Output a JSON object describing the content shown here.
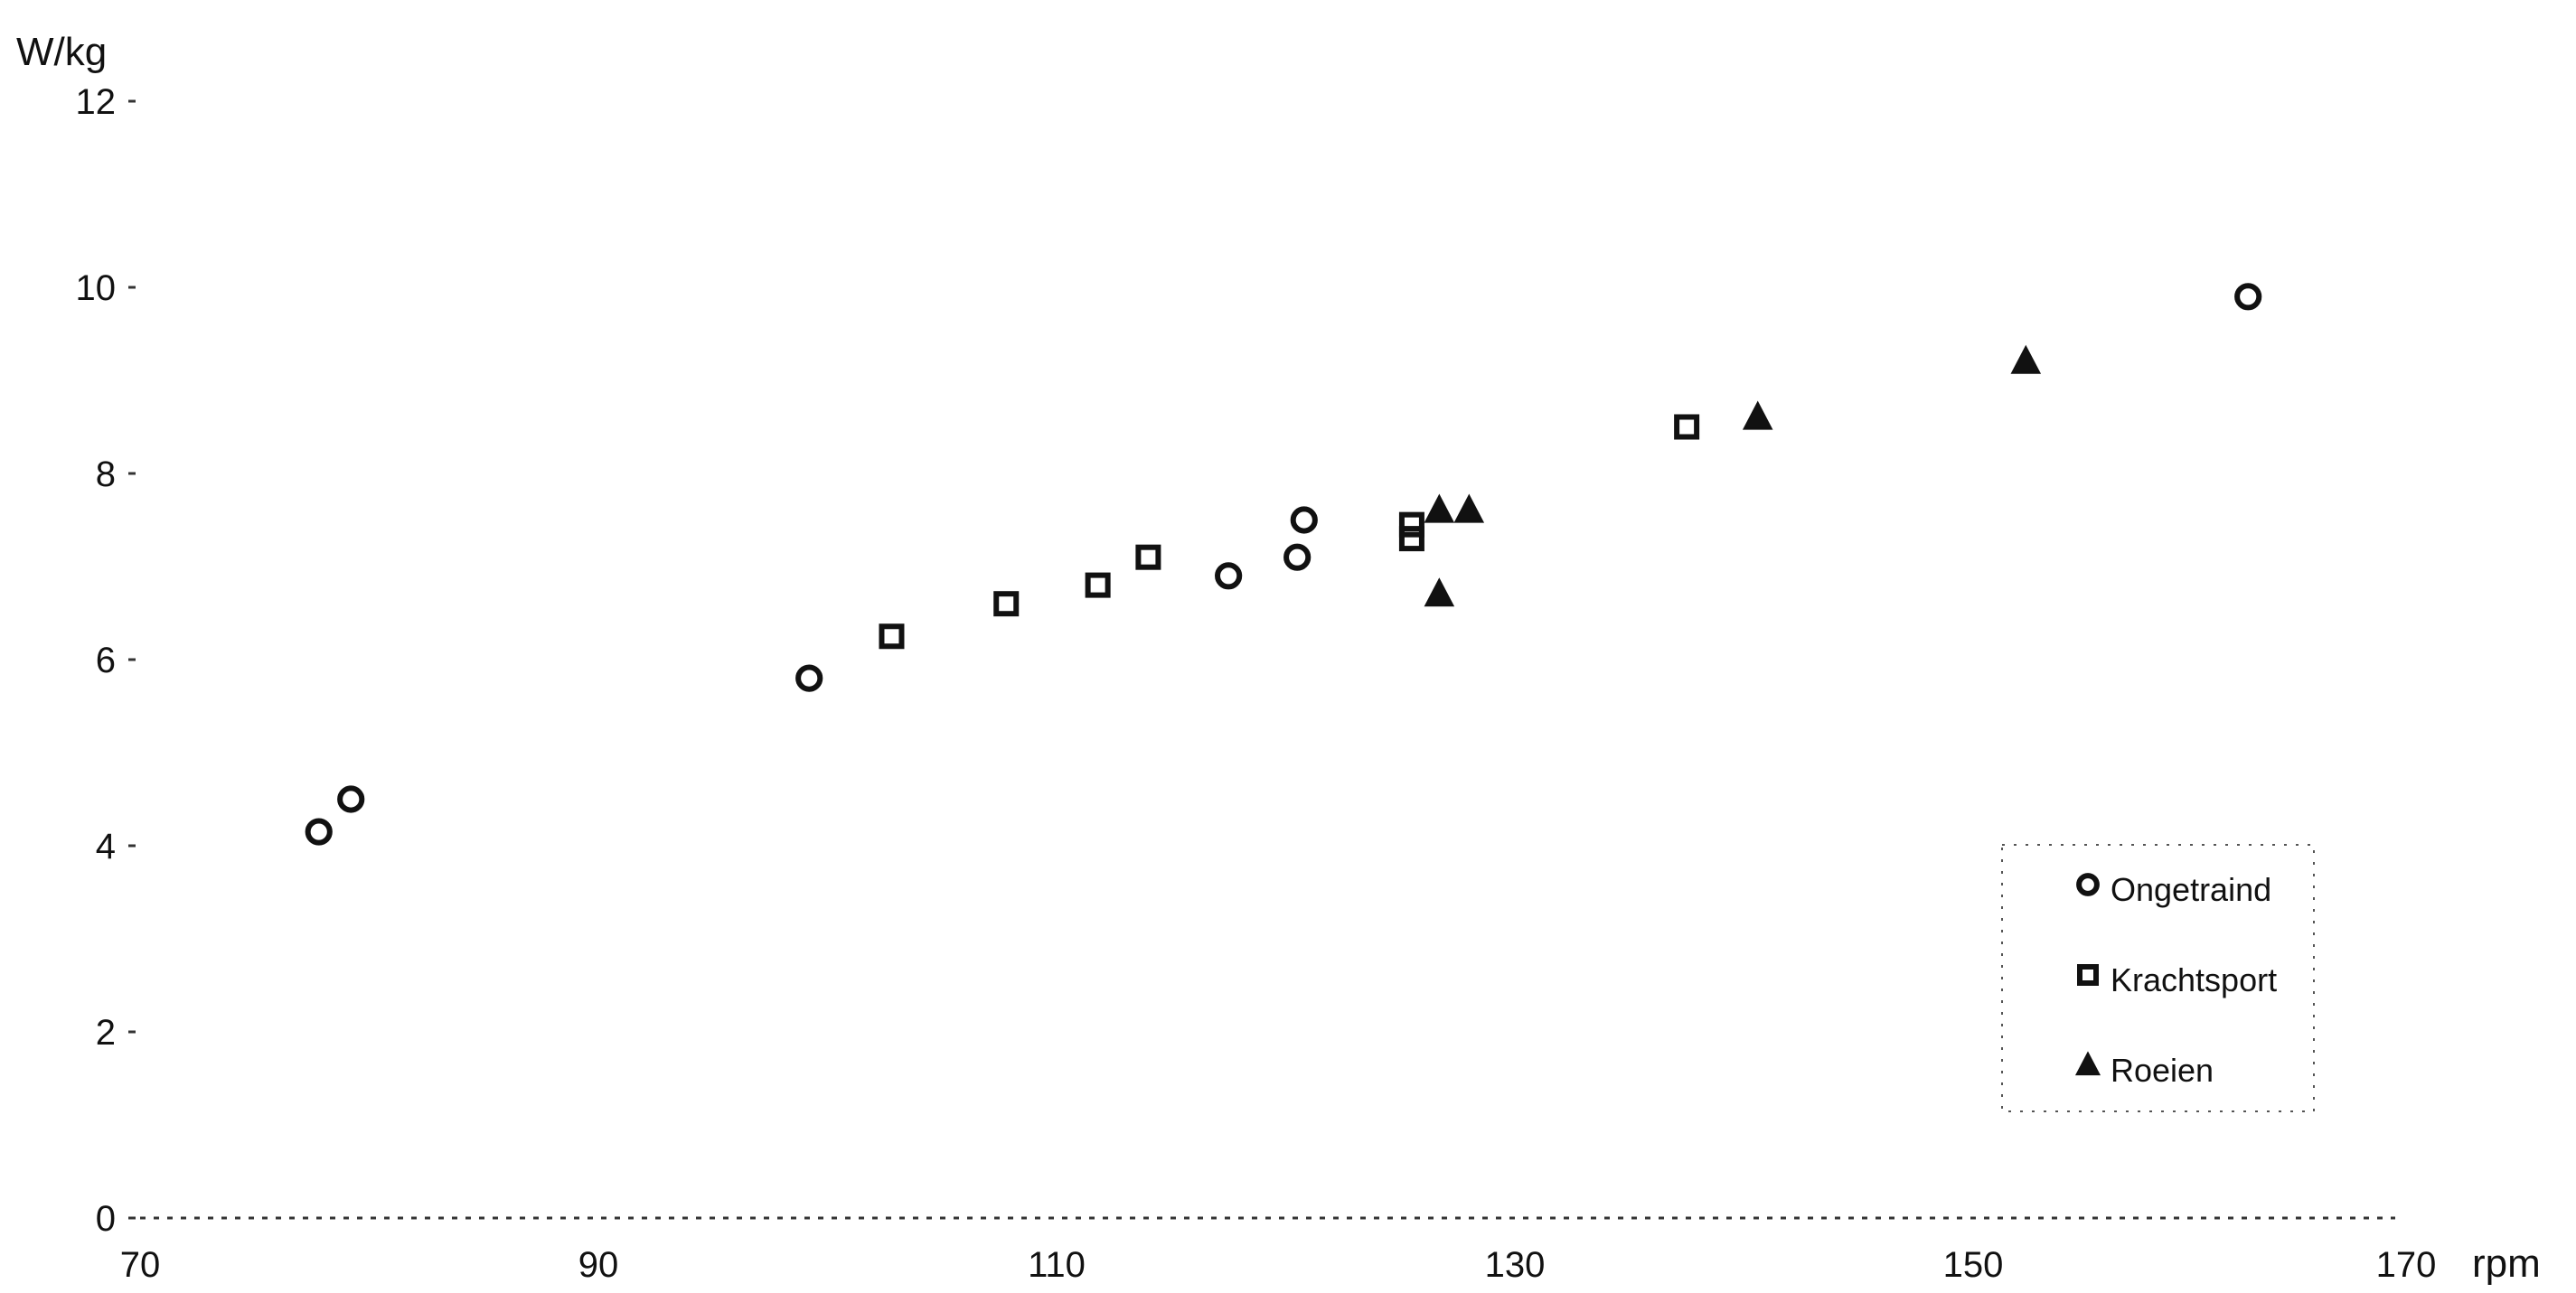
{
  "chart_data": {
    "type": "scatter",
    "title": "",
    "xlabel": "rpm",
    "ylabel": "W/kg",
    "xlim": [
      70,
      170
    ],
    "ylim": [
      0,
      12
    ],
    "xticks": [
      70,
      90,
      110,
      130,
      150,
      170
    ],
    "yticks": [
      0,
      2,
      4,
      6,
      8,
      10,
      12
    ],
    "xtick_labels": [
      "70",
      "90",
      "110",
      "130",
      "150",
      "170"
    ],
    "ytick_labels": [
      "0",
      "2",
      "4",
      "6",
      "8",
      "10",
      "12"
    ],
    "grid": false,
    "legend_position": "bottom-right",
    "series": [
      {
        "name": "Ongetraind",
        "marker": "circle",
        "points": [
          {
            "x": 77.8,
            "y": 4.15
          },
          {
            "x": 79.2,
            "y": 4.5
          },
          {
            "x": 99.2,
            "y": 5.8
          },
          {
            "x": 117.5,
            "y": 6.9
          },
          {
            "x": 120.5,
            "y": 7.1
          },
          {
            "x": 120.8,
            "y": 7.5
          },
          {
            "x": 162.0,
            "y": 9.9
          }
        ]
      },
      {
        "name": "Krachtsport",
        "marker": "square",
        "points": [
          {
            "x": 102.8,
            "y": 6.25
          },
          {
            "x": 107.8,
            "y": 6.6
          },
          {
            "x": 111.8,
            "y": 6.8
          },
          {
            "x": 114.0,
            "y": 7.1
          },
          {
            "x": 125.5,
            "y": 7.3
          },
          {
            "x": 125.5,
            "y": 7.45
          },
          {
            "x": 137.5,
            "y": 8.5
          }
        ]
      },
      {
        "name": "Roeien",
        "marker": "triangle",
        "points": [
          {
            "x": 126.7,
            "y": 6.7
          },
          {
            "x": 126.7,
            "y": 7.6
          },
          {
            "x": 128.0,
            "y": 7.6
          },
          {
            "x": 140.6,
            "y": 8.6
          },
          {
            "x": 152.3,
            "y": 9.2
          }
        ]
      }
    ]
  }
}
